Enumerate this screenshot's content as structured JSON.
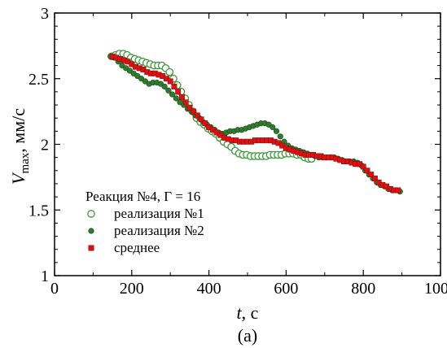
{
  "chart_data": {
    "type": "scatter",
    "xlim": [
      0,
      1000
    ],
    "ylim": [
      1,
      3
    ],
    "x_ticks": [
      "0",
      "200",
      "400",
      "600",
      "800",
      "1000"
    ],
    "y_ticks": [
      "1",
      "1.5",
      "2",
      "2.5",
      "3"
    ],
    "xlabel_main": "t",
    "xlabel_unit": ", с",
    "ylabel_main": "V",
    "ylabel_sub": "max",
    "ylabel_unit": ", мм/с",
    "caption": "(a)",
    "legend_title": "Реакция №4, Γ = 16",
    "grid": false,
    "series": [
      {
        "name": "реализация №1",
        "marker": "open-circle",
        "color": "#3a9a3a",
        "x": [
          148,
          158,
          168,
          178,
          188,
          198,
          208,
          218,
          228,
          238,
          248,
          258,
          268,
          278,
          288,
          298,
          308,
          318,
          328,
          338,
          348,
          358,
          368,
          378,
          388,
          398,
          408,
          418,
          428,
          438,
          448,
          458,
          468,
          478,
          488,
          498,
          508,
          518,
          528,
          538,
          548,
          558,
          568,
          578,
          588,
          598,
          608,
          618,
          628,
          638,
          648,
          658,
          666
        ],
        "y": [
          2.67,
          2.68,
          2.69,
          2.69,
          2.68,
          2.66,
          2.65,
          2.64,
          2.63,
          2.62,
          2.61,
          2.6,
          2.6,
          2.6,
          2.58,
          2.55,
          2.5,
          2.45,
          2.4,
          2.35,
          2.3,
          2.25,
          2.2,
          2.17,
          2.15,
          2.12,
          2.1,
          2.08,
          2.05,
          2.02,
          2.0,
          1.98,
          1.95,
          1.93,
          1.92,
          1.92,
          1.91,
          1.91,
          1.91,
          1.91,
          1.91,
          1.92,
          1.92,
          1.92,
          1.92,
          1.93,
          1.93,
          1.93,
          1.92,
          1.92,
          1.9,
          1.89,
          1.89
        ]
      },
      {
        "name": "реализация №2",
        "marker": "filled-circle",
        "color": "#2f7a2f",
        "x": [
          145,
          155,
          165,
          175,
          185,
          195,
          205,
          215,
          225,
          235,
          245,
          255,
          265,
          275,
          285,
          295,
          305,
          315,
          325,
          335,
          345,
          355,
          365,
          375,
          385,
          395,
          405,
          415,
          425,
          435,
          445,
          455,
          465,
          475,
          485,
          495,
          505,
          515,
          525,
          535,
          545,
          555,
          565,
          575,
          585,
          595,
          605,
          615,
          625,
          635,
          645,
          655,
          665,
          675,
          685,
          695,
          705,
          715,
          725,
          735,
          745,
          755,
          765,
          775,
          785,
          795,
          805,
          815,
          825,
          835,
          845,
          855,
          865,
          875,
          885,
          895
        ],
        "y": [
          2.67,
          2.66,
          2.63,
          2.6,
          2.58,
          2.56,
          2.54,
          2.52,
          2.5,
          2.48,
          2.46,
          2.47,
          2.47,
          2.46,
          2.44,
          2.41,
          2.38,
          2.35,
          2.32,
          2.3,
          2.27,
          2.25,
          2.22,
          2.2,
          2.17,
          2.15,
          2.13,
          2.11,
          2.09,
          2.08,
          2.09,
          2.1,
          2.1,
          2.11,
          2.11,
          2.12,
          2.13,
          2.14,
          2.15,
          2.16,
          2.16,
          2.15,
          2.13,
          2.1,
          2.06,
          2.02,
          1.99,
          1.97,
          1.96,
          1.95,
          1.94,
          1.93,
          1.92,
          1.91,
          1.9,
          1.9,
          1.9,
          1.9,
          1.9,
          1.89,
          1.88,
          1.87,
          1.87,
          1.87,
          1.86,
          1.84,
          1.8,
          1.77,
          1.74,
          1.71,
          1.69,
          1.68,
          1.66,
          1.65,
          1.65,
          1.64
        ]
      },
      {
        "name": "среднее",
        "marker": "filled-square",
        "color": "#dd1111",
        "x": [
          150,
          160,
          170,
          180,
          190,
          200,
          210,
          220,
          230,
          240,
          250,
          260,
          270,
          280,
          290,
          300,
          310,
          320,
          330,
          340,
          350,
          360,
          370,
          380,
          390,
          400,
          410,
          420,
          430,
          440,
          450,
          460,
          470,
          480,
          490,
          500,
          510,
          520,
          530,
          540,
          550,
          560,
          570,
          580,
          590,
          600,
          610,
          620,
          630,
          640,
          650,
          660,
          670,
          680,
          690,
          700,
          710,
          720,
          730,
          740,
          750,
          760,
          770,
          780,
          790,
          800,
          810,
          820,
          830,
          840,
          850,
          860,
          870,
          880,
          890
        ],
        "y": [
          2.67,
          2.66,
          2.65,
          2.64,
          2.63,
          2.61,
          2.59,
          2.58,
          2.57,
          2.55,
          2.54,
          2.54,
          2.53,
          2.52,
          2.5,
          2.48,
          2.44,
          2.4,
          2.36,
          2.32,
          2.28,
          2.25,
          2.22,
          2.19,
          2.16,
          2.13,
          2.11,
          2.09,
          2.07,
          2.05,
          2.04,
          2.03,
          2.03,
          2.02,
          2.02,
          2.02,
          2.02,
          2.03,
          2.03,
          2.03,
          2.03,
          2.03,
          2.02,
          2.01,
          1.99,
          1.97,
          1.96,
          1.95,
          1.94,
          1.93,
          1.92,
          1.92,
          1.92,
          1.91,
          1.91,
          1.9,
          1.9,
          1.9,
          1.89,
          1.88,
          1.87,
          1.87,
          1.86,
          1.85,
          1.85,
          1.83,
          1.8,
          1.77,
          1.74,
          1.71,
          1.69,
          1.68,
          1.66,
          1.65,
          1.65
        ]
      }
    ]
  }
}
